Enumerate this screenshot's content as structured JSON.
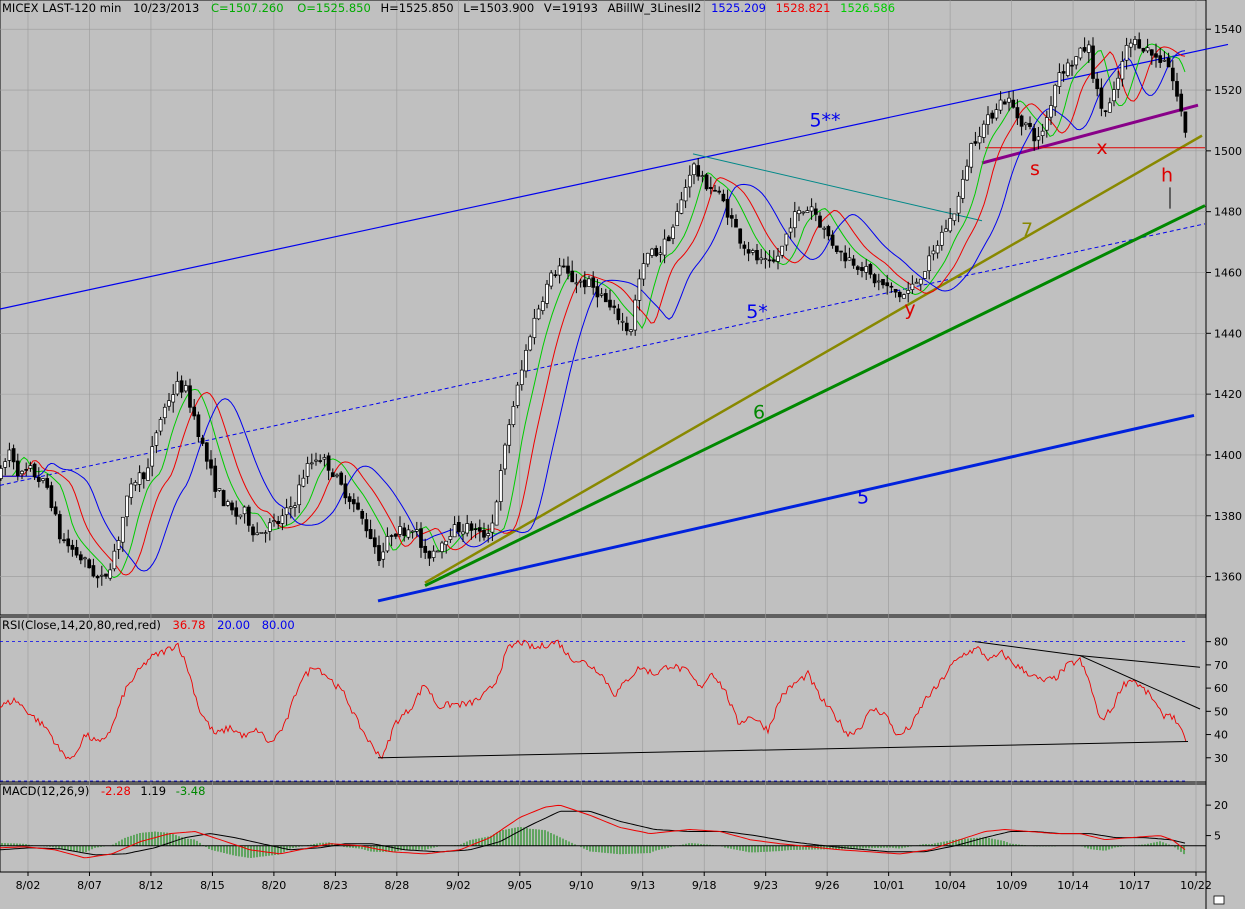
{
  "chart_data": {
    "type": "candlestick",
    "header": {
      "symbol": "MICEX LAST-120 min",
      "date": "10/23/2013",
      "close": "C=1507.260",
      "open": "O=1525.850",
      "high": "H=1525.850",
      "low": "L=1503.900",
      "volume": "V=19193",
      "study": "ABillW_3LinesII2",
      "line1": "1525.209",
      "line2": "1528.821",
      "line3": "1526.586"
    },
    "price_axis": {
      "ylim": [
        1350,
        1545
      ],
      "ticks": [
        1540,
        1520,
        1500,
        1480,
        1460,
        1440,
        1420,
        1400,
        1380,
        1360
      ]
    },
    "x_ticks": [
      "8/02",
      "8/07",
      "8/12",
      "8/15",
      "8/20",
      "8/23",
      "8/28",
      "9/02",
      "9/05",
      "9/10",
      "9/13",
      "9/18",
      "9/23",
      "9/26",
      "10/01",
      "10/04",
      "10/09",
      "10/14",
      "10/17",
      "10/22"
    ],
    "price_path": [
      [
        0,
        1393
      ],
      [
        10,
        1402
      ],
      [
        20,
        1393
      ],
      [
        30,
        1395
      ],
      [
        48,
        1389
      ],
      [
        60,
        1373
      ],
      [
        75,
        1368
      ],
      [
        90,
        1363
      ],
      [
        100,
        1358
      ],
      [
        108,
        1362
      ],
      [
        118,
        1372
      ],
      [
        125,
        1383
      ],
      [
        135,
        1392
      ],
      [
        148,
        1395
      ],
      [
        158,
        1410
      ],
      [
        168,
        1418
      ],
      [
        178,
        1423
      ],
      [
        186,
        1421
      ],
      [
        195,
        1412
      ],
      [
        205,
        1400
      ],
      [
        215,
        1390
      ],
      [
        225,
        1384
      ],
      [
        235,
        1380
      ],
      [
        245,
        1381
      ],
      [
        255,
        1374
      ],
      [
        265,
        1376
      ],
      [
        280,
        1378
      ],
      [
        295,
        1385
      ],
      [
        305,
        1395
      ],
      [
        318,
        1400
      ],
      [
        330,
        1396
      ],
      [
        340,
        1390
      ],
      [
        350,
        1386
      ],
      [
        360,
        1380
      ],
      [
        370,
        1374
      ],
      [
        380,
        1366
      ],
      [
        392,
        1375
      ],
      [
        402,
        1375
      ],
      [
        414,
        1377
      ],
      [
        425,
        1366
      ],
      [
        438,
        1370
      ],
      [
        450,
        1375
      ],
      [
        460,
        1376
      ],
      [
        472,
        1376
      ],
      [
        482,
        1373
      ],
      [
        492,
        1377
      ],
      [
        500,
        1392
      ],
      [
        510,
        1412
      ],
      [
        520,
        1425
      ],
      [
        530,
        1440
      ],
      [
        540,
        1450
      ],
      [
        550,
        1458
      ],
      [
        560,
        1462
      ],
      [
        570,
        1458
      ],
      [
        580,
        1457
      ],
      [
        590,
        1456
      ],
      [
        600,
        1453
      ],
      [
        610,
        1448
      ],
      [
        620,
        1445
      ],
      [
        630,
        1440
      ],
      [
        638,
        1456
      ],
      [
        648,
        1466
      ],
      [
        660,
        1467
      ],
      [
        672,
        1474
      ],
      [
        682,
        1484
      ],
      [
        692,
        1496
      ],
      [
        702,
        1490
      ],
      [
        712,
        1488
      ],
      [
        722,
        1484
      ],
      [
        732,
        1477
      ],
      [
        742,
        1470
      ],
      [
        752,
        1466
      ],
      [
        762,
        1463
      ],
      [
        772,
        1462
      ],
      [
        782,
        1468
      ],
      [
        792,
        1478
      ],
      [
        802,
        1480
      ],
      [
        812,
        1482
      ],
      [
        822,
        1475
      ],
      [
        832,
        1470
      ],
      [
        842,
        1466
      ],
      [
        852,
        1464
      ],
      [
        862,
        1462
      ],
      [
        872,
        1458
      ],
      [
        882,
        1456
      ],
      [
        892,
        1454
      ],
      [
        902,
        1452
      ],
      [
        912,
        1455
      ],
      [
        922,
        1460
      ],
      [
        932,
        1465
      ],
      [
        942,
        1473
      ],
      [
        952,
        1478
      ],
      [
        962,
        1488
      ],
      [
        970,
        1501
      ],
      [
        978,
        1506
      ],
      [
        988,
        1510
      ],
      [
        998,
        1516
      ],
      [
        1008,
        1517
      ],
      [
        1018,
        1511
      ],
      [
        1028,
        1508
      ],
      [
        1038,
        1503
      ],
      [
        1048,
        1512
      ],
      [
        1058,
        1526
      ],
      [
        1068,
        1528
      ],
      [
        1078,
        1531
      ],
      [
        1088,
        1535
      ],
      [
        1096,
        1520
      ],
      [
        1104,
        1512
      ],
      [
        1112,
        1516
      ],
      [
        1120,
        1526
      ],
      [
        1128,
        1535
      ],
      [
        1138,
        1536
      ],
      [
        1148,
        1533
      ],
      [
        1158,
        1530
      ],
      [
        1166,
        1531
      ],
      [
        1172,
        1524
      ],
      [
        1180,
        1514
      ],
      [
        1186,
        1506
      ]
    ],
    "moving_averages": [
      {
        "color": "#00cc00",
        "lag": 12,
        "smooth": 0.45
      },
      {
        "color": "#ee0000",
        "lag": 22,
        "smooth": 0.32
      },
      {
        "color": "#0000ee",
        "lag": 38,
        "smooth": 0.22
      }
    ],
    "annotations": {
      "lines": [
        {
          "id": "ch5dd",
          "color": "#0000ee",
          "width": 1.2,
          "dash": "",
          "x1": 0,
          "y1": 1448,
          "x2": 1228,
          "y2": 1535
        },
        {
          "id": "ch5s",
          "color": "#0000ee",
          "width": 1,
          "dash": "4,3",
          "x1": 0,
          "y1": 1390,
          "x2": 1205,
          "y2": 1476
        },
        {
          "id": "l5",
          "color": "#0022dd",
          "width": 3,
          "dash": "",
          "x1": 378,
          "y1": 1352,
          "x2": 1194,
          "y2": 1413
        },
        {
          "id": "l6",
          "color": "#008800",
          "width": 3,
          "dash": "",
          "x1": 425,
          "y1": 1357,
          "x2": 1205,
          "y2": 1482
        },
        {
          "id": "l7",
          "color": "#888800",
          "width": 2.5,
          "dash": "",
          "x1": 425,
          "y1": 1358,
          "x2": 1202,
          "y2": 1505
        },
        {
          "id": "res",
          "color": "#008888",
          "width": 1,
          "dash": "",
          "x1": 693,
          "y1": 1499,
          "x2": 982,
          "y2": 1477
        },
        {
          "id": "pur",
          "color": "#880088",
          "width": 3,
          "dash": "",
          "x1": 982,
          "y1": 1496,
          "x2": 1198,
          "y2": 1515
        },
        {
          "id": "red1",
          "color": "#dd0000",
          "width": 1,
          "dash": "",
          "x1": 985,
          "y1": 1501,
          "x2": 1205,
          "y2": 1501
        }
      ],
      "labels": [
        {
          "text": "5**",
          "color": "#0000ee",
          "x": 825,
          "y": 1508
        },
        {
          "text": "5*",
          "color": "#0000ee",
          "x": 757,
          "y": 1445
        },
        {
          "text": "5",
          "color": "#0000ee",
          "x": 863,
          "y": 1384
        },
        {
          "text": "6",
          "color": "#008800",
          "x": 759,
          "y": 1412
        },
        {
          "text": "7",
          "color": "#888800",
          "x": 1027,
          "y": 1472
        },
        {
          "text": "y",
          "color": "#dd0000",
          "x": 910,
          "y": 1446
        },
        {
          "text": "s",
          "color": "#dd0000",
          "x": 1035,
          "y": 1492
        },
        {
          "text": "x",
          "color": "#dd0000",
          "x": 1102,
          "y": 1499
        },
        {
          "text": "h",
          "color": "#dd0000",
          "x": 1167,
          "y": 1490
        }
      ]
    },
    "rsi": {
      "header": "RSI(Close,14,20,80,red,red)",
      "value": "36.78",
      "lower": "20.00",
      "upper": "80.00",
      "ylim": [
        20,
        82
      ],
      "ticks": [
        80,
        70,
        60,
        50,
        40,
        30
      ],
      "path": [
        [
          0,
          52
        ],
        [
          15,
          55
        ],
        [
          30,
          49
        ],
        [
          48,
          42
        ],
        [
          60,
          33
        ],
        [
          72,
          29
        ],
        [
          85,
          40
        ],
        [
          100,
          36
        ],
        [
          112,
          43
        ],
        [
          125,
          59
        ],
        [
          138,
          67
        ],
        [
          150,
          73
        ],
        [
          165,
          76
        ],
        [
          178,
          79
        ],
        [
          188,
          68
        ],
        [
          200,
          50
        ],
        [
          215,
          40
        ],
        [
          230,
          43
        ],
        [
          245,
          39
        ],
        [
          258,
          42
        ],
        [
          270,
          36
        ],
        [
          285,
          44
        ],
        [
          300,
          63
        ],
        [
          315,
          70
        ],
        [
          330,
          64
        ],
        [
          345,
          57
        ],
        [
          358,
          45
        ],
        [
          372,
          35
        ],
        [
          383,
          30
        ],
        [
          395,
          45
        ],
        [
          410,
          51
        ],
        [
          425,
          62
        ],
        [
          438,
          52
        ],
        [
          452,
          53
        ],
        [
          468,
          53
        ],
        [
          482,
          56
        ],
        [
          495,
          62
        ],
        [
          508,
          77
        ],
        [
          520,
          80
        ],
        [
          535,
          77
        ],
        [
          548,
          79
        ],
        [
          558,
          80
        ],
        [
          570,
          73
        ],
        [
          585,
          71
        ],
        [
          600,
          67
        ],
        [
          615,
          57
        ],
        [
          628,
          64
        ],
        [
          640,
          69
        ],
        [
          655,
          66
        ],
        [
          670,
          70
        ],
        [
          688,
          67
        ],
        [
          700,
          60
        ],
        [
          712,
          67
        ],
        [
          725,
          59
        ],
        [
          738,
          45
        ],
        [
          752,
          48
        ],
        [
          768,
          42
        ],
        [
          782,
          57
        ],
        [
          795,
          62
        ],
        [
          808,
          66
        ],
        [
          820,
          56
        ],
        [
          835,
          48
        ],
        [
          848,
          40
        ],
        [
          860,
          43
        ],
        [
          872,
          51
        ],
        [
          885,
          49
        ],
        [
          898,
          39
        ],
        [
          912,
          44
        ],
        [
          925,
          55
        ],
        [
          938,
          61
        ],
        [
          952,
          70
        ],
        [
          965,
          75
        ],
        [
          978,
          77
        ],
        [
          990,
          72
        ],
        [
          1002,
          75
        ],
        [
          1015,
          70
        ],
        [
          1030,
          66
        ],
        [
          1042,
          63
        ],
        [
          1055,
          64
        ],
        [
          1068,
          70
        ],
        [
          1080,
          72
        ],
        [
          1090,
          62
        ],
        [
          1100,
          46
        ],
        [
          1112,
          51
        ],
        [
          1122,
          61
        ],
        [
          1132,
          64
        ],
        [
          1142,
          60
        ],
        [
          1152,
          56
        ],
        [
          1162,
          48
        ],
        [
          1170,
          49
        ],
        [
          1178,
          45
        ],
        [
          1186,
          36
        ]
      ],
      "lines": [
        {
          "x1": 378,
          "y1": 30,
          "x2": 1188,
          "y2": 37
        },
        {
          "x1": 975,
          "y1": 80,
          "x2": 1080,
          "y2": 74
        },
        {
          "x1": 1080,
          "y1": 74,
          "x2": 1200,
          "y2": 69
        },
        {
          "x1": 1080,
          "y1": 74,
          "x2": 1200,
          "y2": 51
        }
      ]
    },
    "macd": {
      "header": "MACD(12,26,9)",
      "macd": "-2.28",
      "signal": "1.19",
      "hist": "-3.48",
      "ylim": [
        -8,
        24
      ],
      "ticks": [
        20,
        5
      ],
      "macd_path": [
        [
          0,
          -1
        ],
        [
          25,
          -0.5
        ],
        [
          55,
          -2
        ],
        [
          85,
          -6
        ],
        [
          112,
          -4
        ],
        [
          140,
          2
        ],
        [
          170,
          6
        ],
        [
          195,
          7
        ],
        [
          220,
          3
        ],
        [
          250,
          -2
        ],
        [
          280,
          -4
        ],
        [
          310,
          -1
        ],
        [
          330,
          1
        ],
        [
          360,
          0
        ],
        [
          392,
          -3
        ],
        [
          425,
          -4
        ],
        [
          460,
          -2
        ],
        [
          490,
          4
        ],
        [
          520,
          14
        ],
        [
          545,
          19
        ],
        [
          560,
          20
        ],
        [
          590,
          15
        ],
        [
          620,
          9
        ],
        [
          650,
          6
        ],
        [
          690,
          8
        ],
        [
          720,
          7
        ],
        [
          750,
          3
        ],
        [
          780,
          1
        ],
        [
          810,
          -0.5
        ],
        [
          840,
          -2
        ],
        [
          870,
          -3
        ],
        [
          900,
          -4
        ],
        [
          930,
          -2
        ],
        [
          960,
          3
        ],
        [
          985,
          7
        ],
        [
          1005,
          8
        ],
        [
          1030,
          7
        ],
        [
          1055,
          6
        ],
        [
          1080,
          6
        ],
        [
          1105,
          3
        ],
        [
          1130,
          4
        ],
        [
          1160,
          5
        ],
        [
          1172,
          3
        ],
        [
          1186,
          -2.28
        ]
      ],
      "signal_path": [
        [
          0,
          -2
        ],
        [
          30,
          -1
        ],
        [
          60,
          -1.5
        ],
        [
          95,
          -4.5
        ],
        [
          125,
          -4
        ],
        [
          155,
          -1
        ],
        [
          185,
          4
        ],
        [
          210,
          6
        ],
        [
          235,
          4
        ],
        [
          262,
          1
        ],
        [
          290,
          -2
        ],
        [
          320,
          -1
        ],
        [
          345,
          1
        ],
        [
          372,
          1
        ],
        [
          405,
          -2
        ],
        [
          440,
          -3
        ],
        [
          470,
          -2
        ],
        [
          500,
          2
        ],
        [
          530,
          10
        ],
        [
          560,
          17
        ],
        [
          590,
          17
        ],
        [
          620,
          12
        ],
        [
          655,
          8
        ],
        [
          690,
          7
        ],
        [
          725,
          7
        ],
        [
          755,
          5
        ],
        [
          790,
          2
        ],
        [
          825,
          0
        ],
        [
          855,
          -1.5
        ],
        [
          890,
          -3
        ],
        [
          925,
          -3
        ],
        [
          955,
          0
        ],
        [
          985,
          4
        ],
        [
          1010,
          7
        ],
        [
          1035,
          7
        ],
        [
          1060,
          6
        ],
        [
          1090,
          6
        ],
        [
          1115,
          4
        ],
        [
          1145,
          4
        ],
        [
          1170,
          3
        ],
        [
          1186,
          1.19
        ]
      ],
      "zero_value": 0
    }
  }
}
